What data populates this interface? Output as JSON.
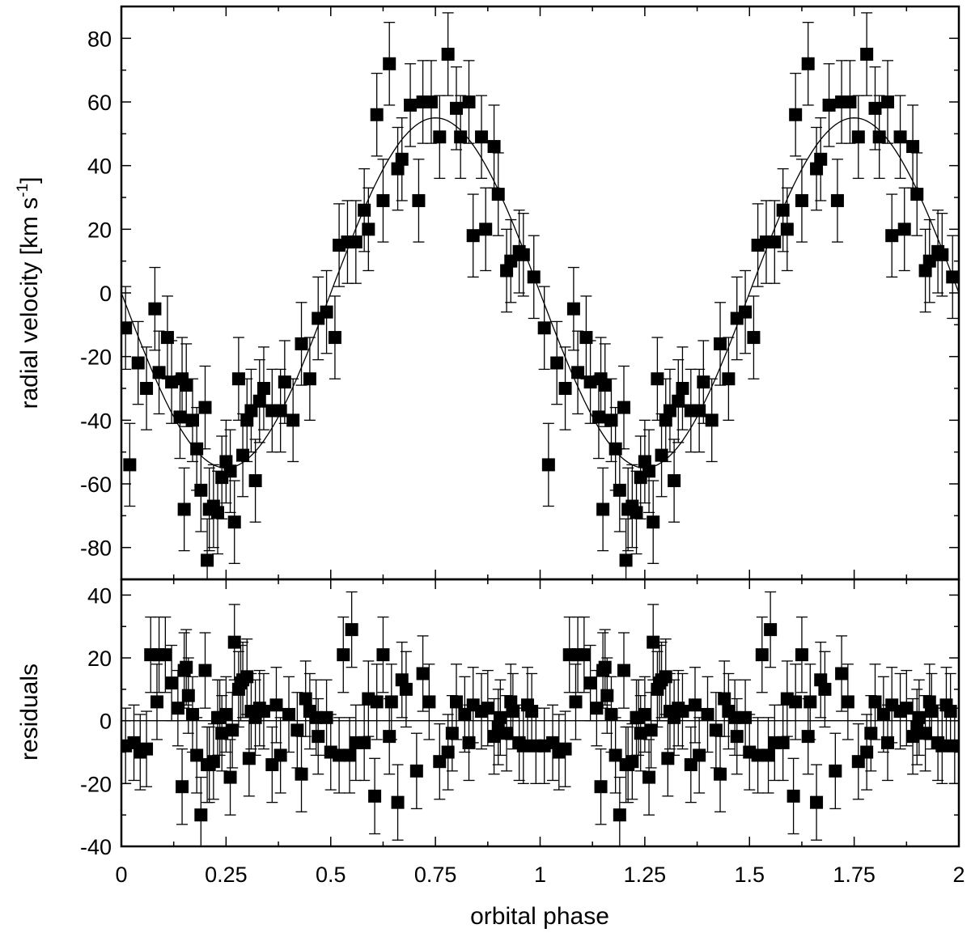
{
  "chart_data": [
    {
      "panel": "top",
      "type": "scatter",
      "xlabel": "orbital phase",
      "ylabel": "radial velocity [km s",
      "ylabel_sup": "-1",
      "ylabel_close": "]",
      "xlim": [
        0,
        2
      ],
      "ylim": [
        -90,
        90
      ],
      "x_ticks": [
        0,
        0.25,
        0.5,
        0.75,
        1,
        1.25,
        1.5,
        1.75,
        2
      ],
      "x_tick_labels": [
        "0",
        "0.25",
        "0.5",
        "0.75",
        "1",
        "1.25",
        "1.5",
        "1.75",
        "2"
      ],
      "y_ticks": [
        -80,
        -60,
        -40,
        -20,
        0,
        20,
        40,
        60,
        80
      ],
      "y_tick_labels": [
        "-80",
        "-60",
        "-40",
        "-20",
        "0",
        "20",
        "40",
        "60",
        "80"
      ],
      "model": {
        "type": "sine",
        "amplitude": 55,
        "phase_of_max": 0.75,
        "offset": 0
      },
      "series": [
        {
          "x": [
            0.01,
            0.02,
            0.04,
            0.06,
            0.08,
            0.09,
            0.11,
            0.12,
            0.14,
            0.145,
            0.15,
            0.155,
            0.17,
            0.18,
            0.19,
            0.2,
            0.205,
            0.21,
            0.22,
            0.23,
            0.24,
            0.25,
            0.26,
            0.27,
            0.28,
            0.29,
            0.3,
            0.31,
            0.32,
            0.33,
            0.34,
            0.36,
            0.38,
            0.39,
            0.41,
            0.43,
            0.45,
            0.47,
            0.49,
            0.51,
            0.52,
            0.54,
            0.56,
            0.58,
            0.59,
            0.61,
            0.625,
            0.64,
            0.66,
            0.67,
            0.69,
            0.71,
            0.72,
            0.74,
            0.76,
            0.78,
            0.8,
            0.81,
            0.83,
            0.84,
            0.86,
            0.87,
            0.89,
            0.9,
            0.92,
            0.93,
            0.95,
            0.96,
            0.985
          ],
          "y": [
            -11,
            -54,
            -22,
            -30,
            -5,
            -25,
            -14,
            -28,
            -39,
            -27,
            -68,
            -29,
            -40,
            -49,
            -62,
            -36,
            -84,
            -68,
            -67,
            -69,
            -58,
            -53,
            -56,
            -72,
            -27,
            -51,
            -40,
            -37,
            -59,
            -34,
            -30,
            -37,
            -37,
            -28,
            -40,
            -16,
            -27,
            -8,
            -6,
            -14,
            15,
            16,
            16,
            26,
            20,
            56,
            29,
            72,
            39,
            42,
            59,
            29,
            60,
            60,
            49,
            75,
            58,
            49,
            60,
            18,
            49,
            20,
            46,
            31,
            7,
            10,
            13,
            12,
            5
          ],
          "err": 13
        }
      ]
    },
    {
      "panel": "bottom",
      "type": "scatter",
      "xlabel": "orbital phase",
      "ylabel": "residuals",
      "xlim": [
        0,
        2
      ],
      "ylim": [
        -40,
        45
      ],
      "y_ticks": [
        -40,
        -20,
        0,
        20,
        40
      ],
      "y_tick_labels": [
        "-40",
        "-20",
        "0",
        "20",
        "40"
      ],
      "series": [
        {
          "x": [
            0.01,
            0.03,
            0.045,
            0.06,
            0.07,
            0.085,
            0.09,
            0.105,
            0.12,
            0.135,
            0.145,
            0.15,
            0.155,
            0.16,
            0.17,
            0.18,
            0.19,
            0.2,
            0.205,
            0.21,
            0.22,
            0.23,
            0.235,
            0.24,
            0.25,
            0.26,
            0.265,
            0.27,
            0.28,
            0.285,
            0.29,
            0.3,
            0.305,
            0.31,
            0.32,
            0.33,
            0.34,
            0.36,
            0.37,
            0.38,
            0.4,
            0.42,
            0.43,
            0.44,
            0.45,
            0.465,
            0.47,
            0.49,
            0.5,
            0.52,
            0.53,
            0.545,
            0.55,
            0.56,
            0.58,
            0.59,
            0.605,
            0.61,
            0.625,
            0.64,
            0.645,
            0.66,
            0.67,
            0.68,
            0.705,
            0.72,
            0.735,
            0.76,
            0.78,
            0.79,
            0.8,
            0.82,
            0.83,
            0.84,
            0.86,
            0.875,
            0.89,
            0.9,
            0.905,
            0.92,
            0.93,
            0.935,
            0.95,
            0.96,
            0.97,
            0.98,
            0.99
          ],
          "y": [
            -8,
            -7,
            -10,
            -9,
            21,
            6,
            21,
            21,
            12,
            4,
            -21,
            16,
            17,
            8,
            2,
            -11,
            -30,
            16,
            -14,
            -14,
            -13,
            1,
            1,
            -4,
            2,
            -18,
            -3,
            25,
            10,
            12,
            13,
            14,
            -12,
            3,
            1,
            4,
            3,
            -14,
            5,
            -11,
            2,
            -3,
            -17,
            7,
            3,
            1,
            -5,
            1,
            -10,
            -11,
            21,
            -11,
            29,
            -7,
            -7,
            7,
            -24,
            6,
            21,
            -5,
            6,
            -26,
            13,
            10,
            -16,
            15,
            6,
            -13,
            -10,
            -4,
            6,
            2,
            -7,
            5,
            3,
            4,
            -5,
            -2,
            1,
            -4,
            6,
            3,
            -7,
            -8,
            5,
            3,
            -8
          ],
          "err": 12
        }
      ]
    }
  ]
}
